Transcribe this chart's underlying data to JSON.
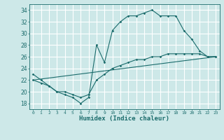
{
  "title": "",
  "xlabel": "Humidex (Indice chaleur)",
  "bg_color": "#cde8e8",
  "grid_color": "#ffffff",
  "line_color": "#1a6b6b",
  "xlim": [
    -0.5,
    23.5
  ],
  "ylim": [
    17,
    35
  ],
  "xticks": [
    0,
    1,
    2,
    3,
    4,
    5,
    6,
    7,
    8,
    9,
    10,
    11,
    12,
    13,
    14,
    15,
    16,
    17,
    18,
    19,
    20,
    21,
    22,
    23
  ],
  "yticks": [
    18,
    20,
    22,
    24,
    26,
    28,
    30,
    32,
    34
  ],
  "line1_x": [
    0,
    1,
    2,
    3,
    4,
    5,
    6,
    7,
    8,
    9,
    10,
    11,
    12,
    13,
    14,
    15,
    16,
    17,
    18,
    19,
    20,
    21,
    22,
    23
  ],
  "line1_y": [
    23,
    22,
    21,
    20,
    19.5,
    19,
    18,
    19,
    28,
    25,
    30.5,
    32,
    33,
    33,
    33.5,
    34,
    33,
    33,
    33,
    30.5,
    29,
    27,
    26,
    26
  ],
  "line2_x": [
    0,
    1,
    2,
    3,
    4,
    5,
    6,
    7,
    8,
    9,
    10,
    11,
    12,
    13,
    14,
    15,
    16,
    17,
    18,
    19,
    20,
    21,
    22,
    23
  ],
  "line2_y": [
    22,
    21.5,
    21,
    20,
    20,
    19.5,
    19,
    19.5,
    22,
    23,
    24,
    24.5,
    25,
    25.5,
    25.5,
    26,
    26,
    26.5,
    26.5,
    26.5,
    26.5,
    26.5,
    26,
    26
  ],
  "line3_x": [
    0,
    23
  ],
  "line3_y": [
    22,
    26
  ]
}
